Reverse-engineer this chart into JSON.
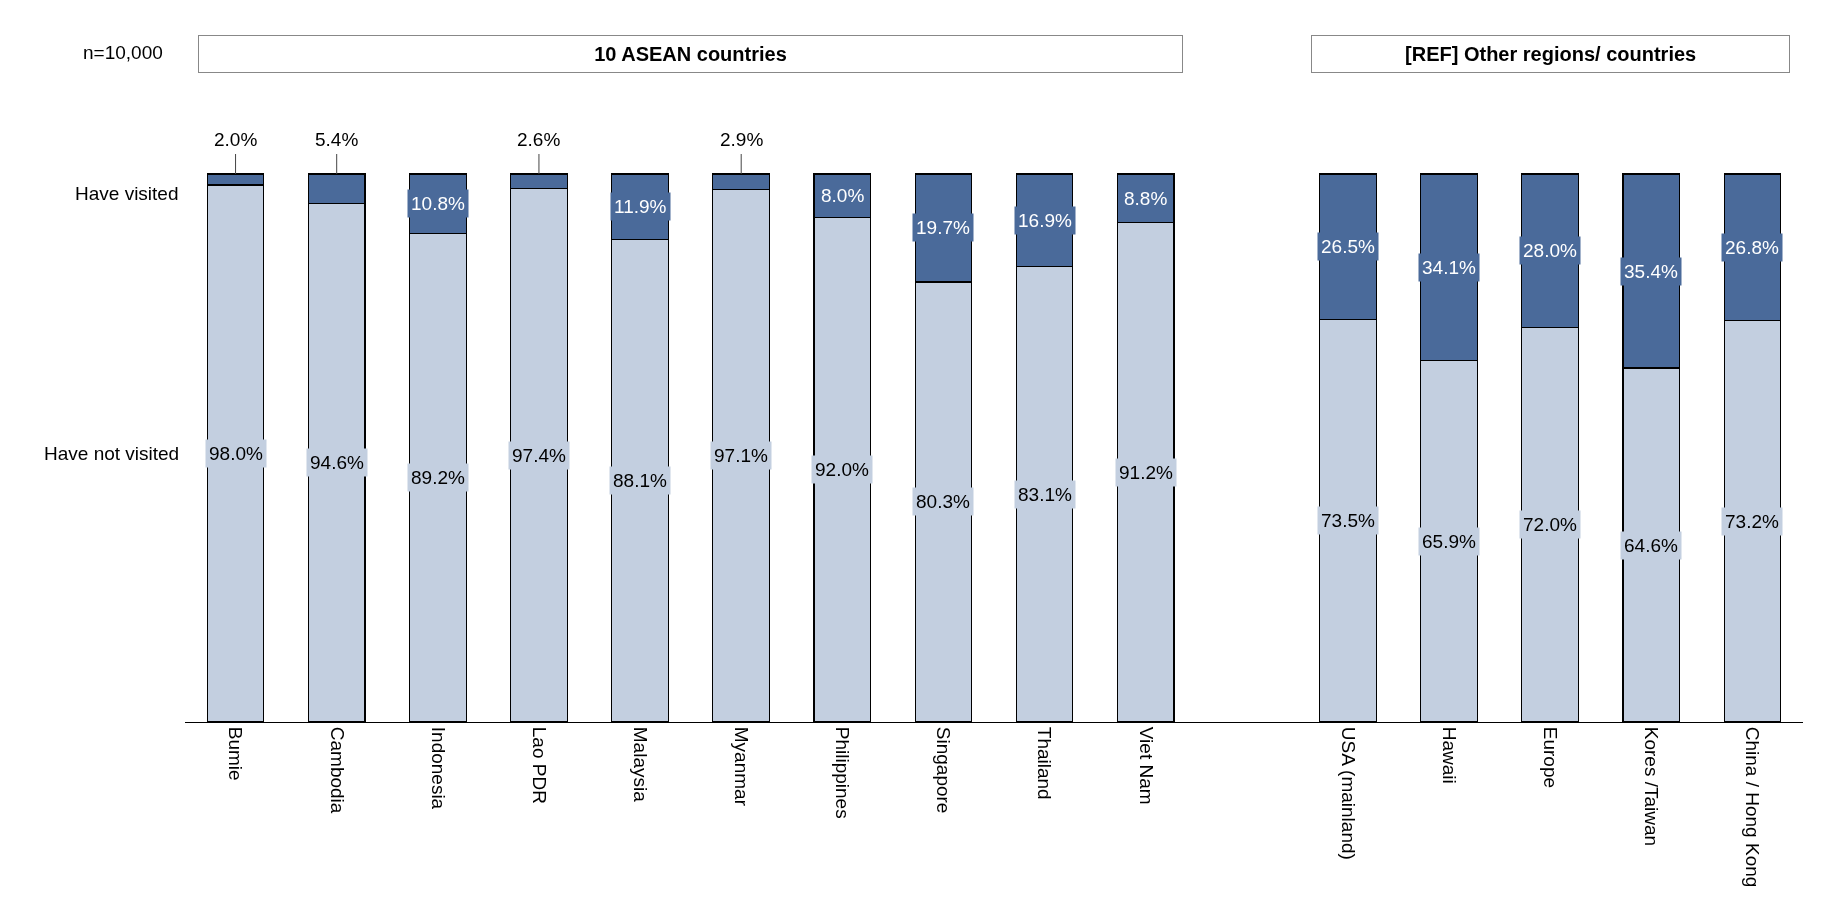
{
  "chart_data": {
    "type": "bar",
    "stacked": true,
    "legend": "left",
    "tick_labels": "x",
    "categories": [
      "Bumie",
      "Cambodia",
      "Indonesia",
      "Lao PDR",
      "Malaysia",
      "Myanmar",
      "Philippines",
      "Singapore",
      "Thailand",
      "Viet Nam",
      null,
      "USA (mainland)",
      "Hawaii",
      "Europe",
      "Kores /Taiwan",
      "China / Hong Kong"
    ],
    "series": [
      {
        "name": "Have not visited",
        "color": "#c3cfe0",
        "values": [
          98.0,
          94.6,
          89.2,
          97.4,
          88.1,
          97.1,
          92.0,
          80.3,
          83.1,
          91.2,
          null,
          73.5,
          65.9,
          72.0,
          64.6,
          73.2
        ],
        "value_labels": [
          "98.0%",
          "94.6%",
          "89.2%",
          "97.4%",
          "88.1%",
          "97.1%",
          "92.0%",
          "80.3%",
          "83.1%",
          "91.2%",
          null,
          "73.5%",
          "65.9%",
          "72.0%",
          "64.6%",
          "73.2%"
        ]
      },
      {
        "name": "Have visited",
        "color": "#4a6a9a",
        "values": [
          2.0,
          5.4,
          10.8,
          2.6,
          11.9,
          2.9,
          8.0,
          19.7,
          16.9,
          8.8,
          null,
          26.5,
          34.1,
          28.0,
          35.4,
          26.8
        ],
        "value_labels": [
          "2.0%",
          "5.4%",
          "10.8%",
          "2.6%",
          "11.9%",
          "2.9%",
          "8.0%",
          "19.7%",
          "16.9%",
          "8.8%",
          null,
          "26.5%",
          "34.1%",
          "28.0%",
          "35.4%",
          "26.8%"
        ]
      }
    ],
    "annotations": [
      "n=10,000",
      "10 ASEAN countries",
      "[REF] Other regions/ countries"
    ]
  }
}
